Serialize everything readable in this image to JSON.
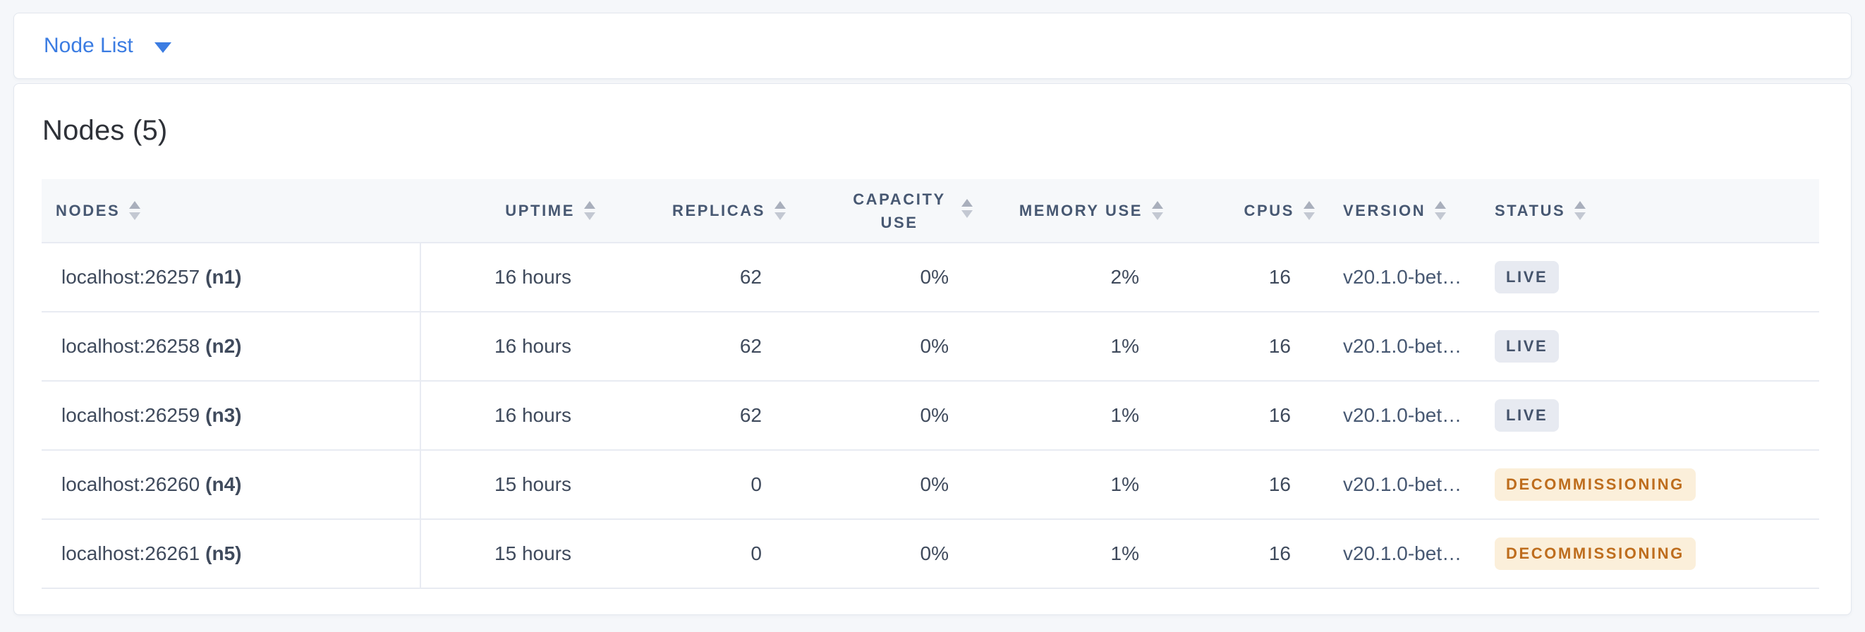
{
  "view_selector": {
    "label": "Node List"
  },
  "panel": {
    "title": "Nodes (5)"
  },
  "table": {
    "columns": [
      {
        "label": "NODES"
      },
      {
        "label": "UPTIME"
      },
      {
        "label": "REPLICAS"
      },
      {
        "label": "CAPACITY USE"
      },
      {
        "label": "MEMORY USE"
      },
      {
        "label": "CPUS"
      },
      {
        "label": "VERSION"
      },
      {
        "label": "STATUS"
      }
    ],
    "rows": [
      {
        "address": "localhost:26257",
        "node_id": "(n1)",
        "uptime": "16 hours",
        "replicas": "62",
        "capacity_use": "0%",
        "memory_use": "2%",
        "cpus": "16",
        "version": "v20.1.0-bet…",
        "status": "LIVE"
      },
      {
        "address": "localhost:26258",
        "node_id": "(n2)",
        "uptime": "16 hours",
        "replicas": "62",
        "capacity_use": "0%",
        "memory_use": "1%",
        "cpus": "16",
        "version": "v20.1.0-bet…",
        "status": "LIVE"
      },
      {
        "address": "localhost:26259",
        "node_id": "(n3)",
        "uptime": "16 hours",
        "replicas": "62",
        "capacity_use": "0%",
        "memory_use": "1%",
        "cpus": "16",
        "version": "v20.1.0-bet…",
        "status": "LIVE"
      },
      {
        "address": "localhost:26260",
        "node_id": "(n4)",
        "uptime": "15 hours",
        "replicas": "0",
        "capacity_use": "0%",
        "memory_use": "1%",
        "cpus": "16",
        "version": "v20.1.0-bet…",
        "status": "DECOMMISSIONING"
      },
      {
        "address": "localhost:26261",
        "node_id": "(n5)",
        "uptime": "15 hours",
        "replicas": "0",
        "capacity_use": "0%",
        "memory_use": "1%",
        "cpus": "16",
        "version": "v20.1.0-bet…",
        "status": "DECOMMISSIONING"
      }
    ]
  },
  "colors": {
    "page_bg": "#F5F7FA",
    "accent_blue": "#3B7CE2",
    "header_text": "#475872",
    "body_text": "#3F4A5C",
    "row_border": "#E8EBF2",
    "live_badge_bg": "#E7EAF1",
    "live_badge_text": "#44536B",
    "decommissioning_badge_bg": "#FBEFDA",
    "decommissioning_badge_text": "#BE6D1D"
  }
}
